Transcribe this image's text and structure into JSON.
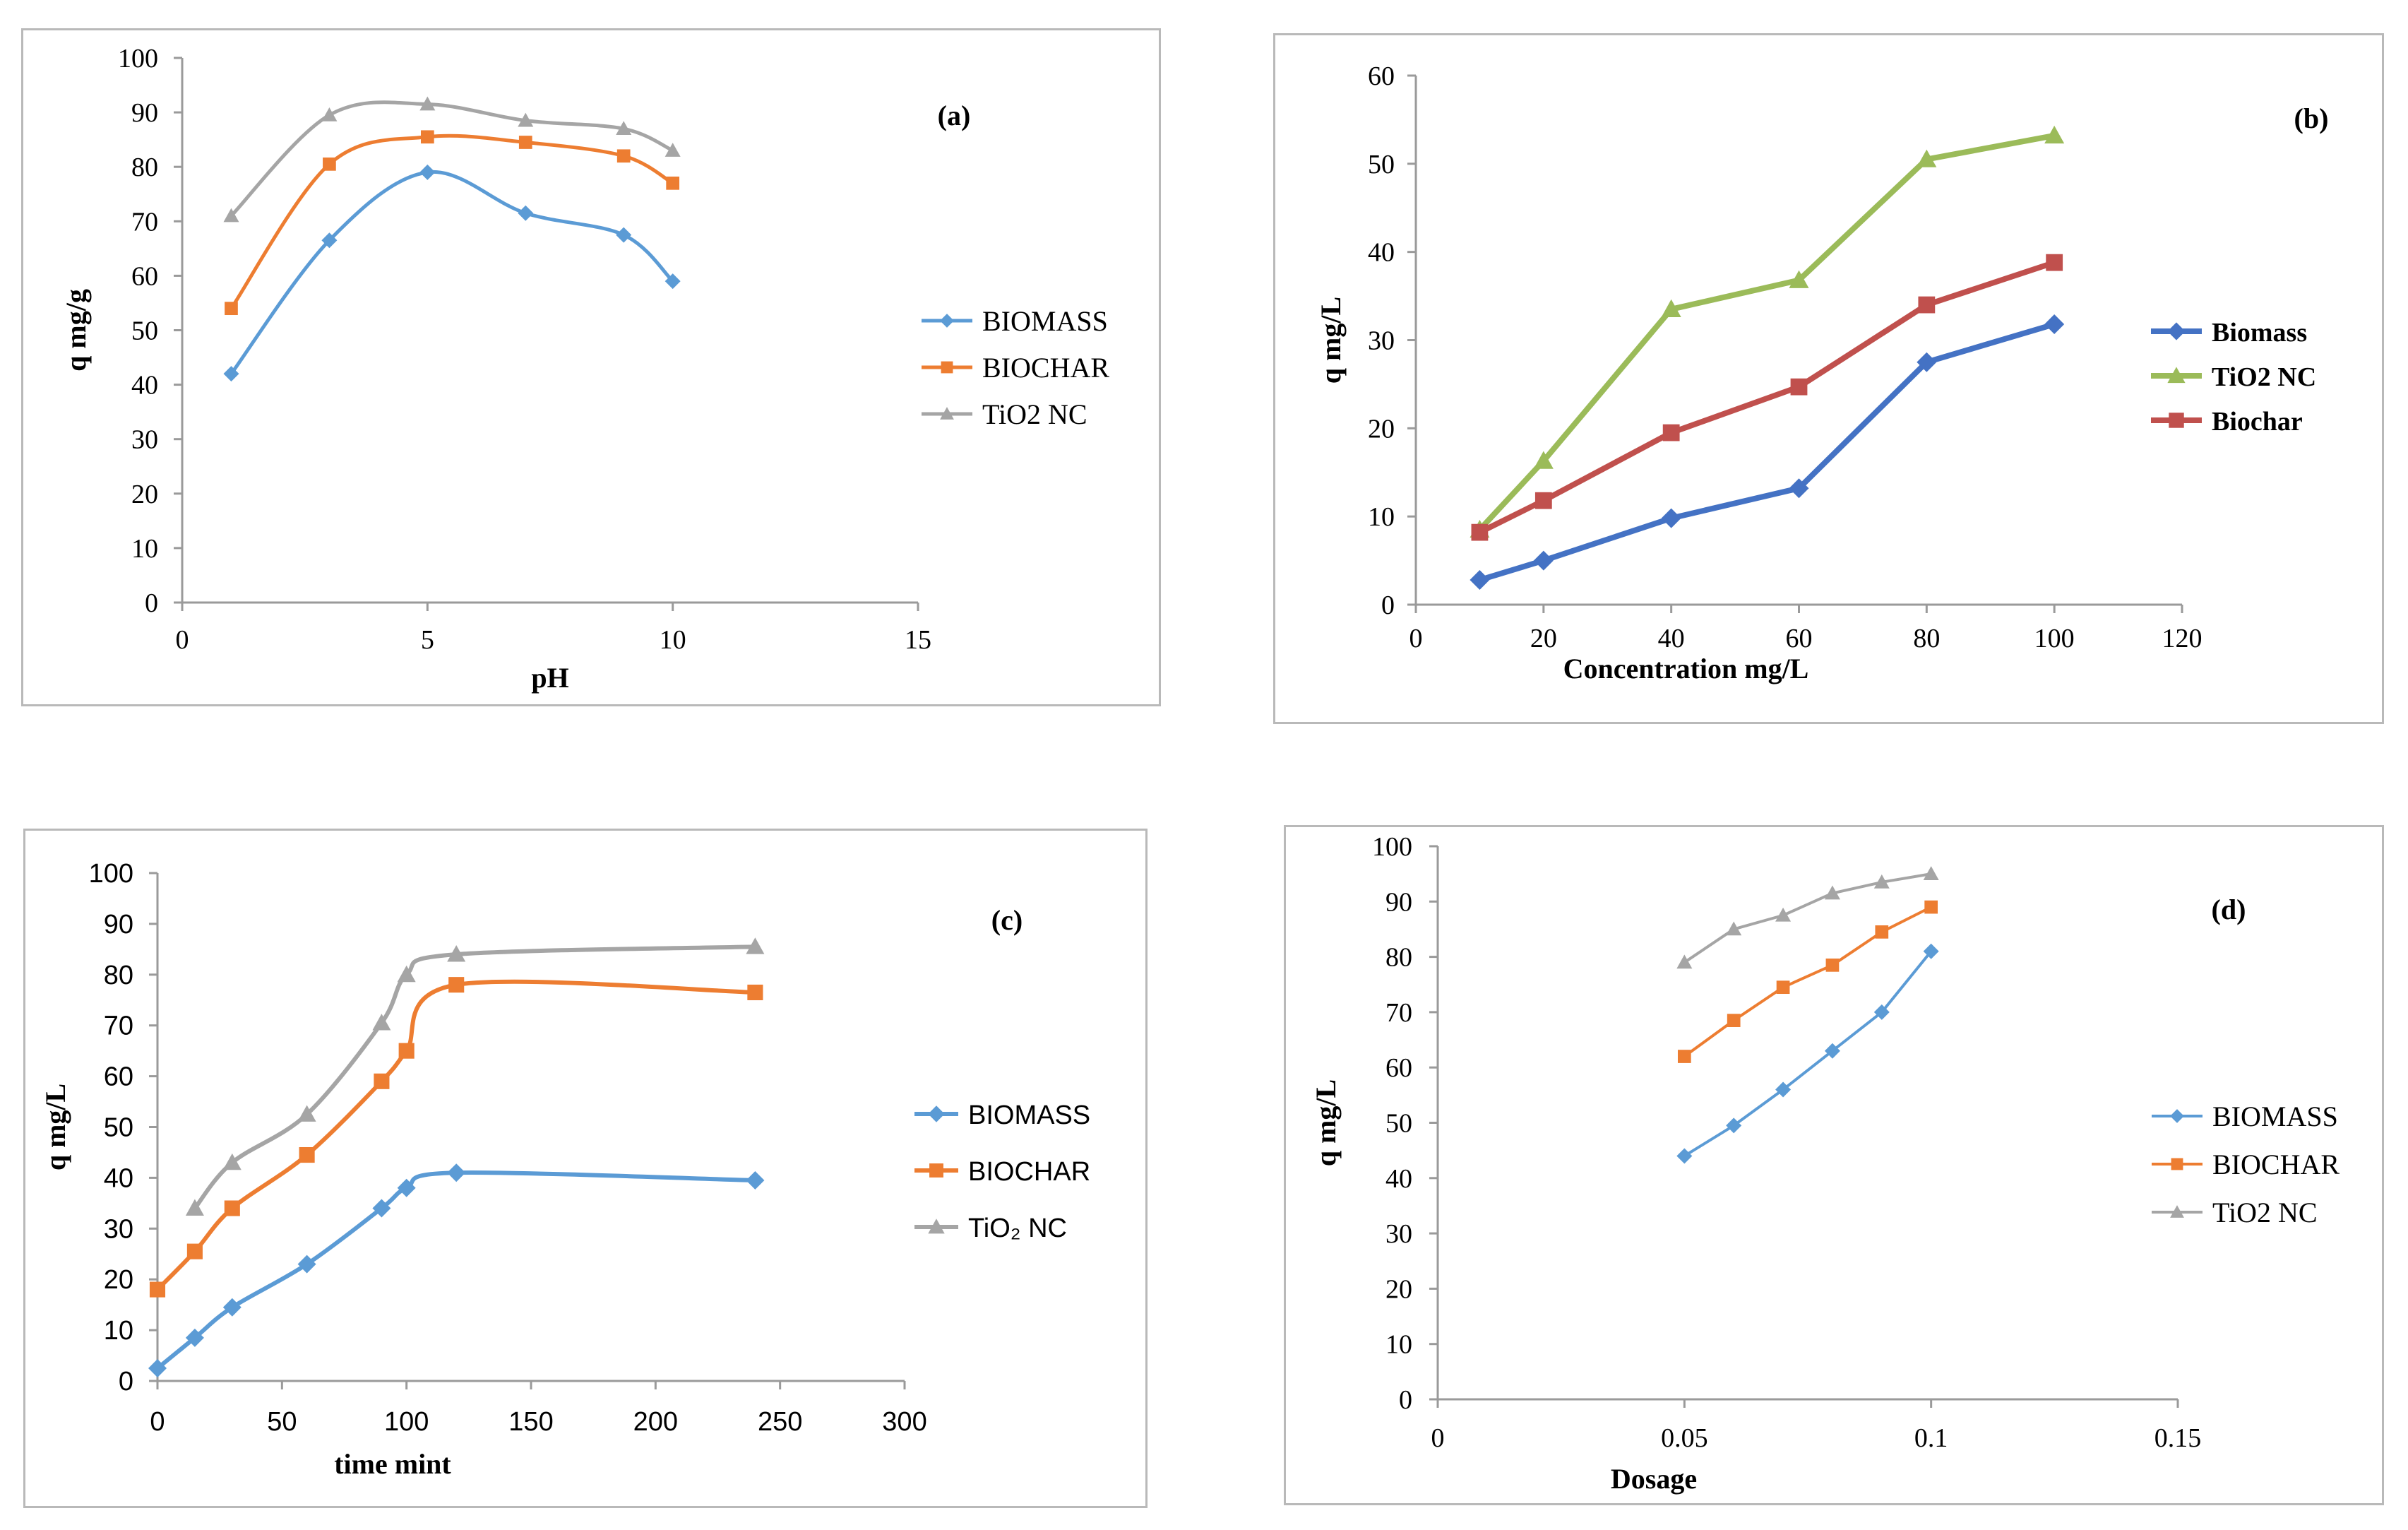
{
  "chart_data": [
    {
      "type": "line",
      "panel_tag": "(a)",
      "xlabel": "pH",
      "ylabel": "q mg/g",
      "xlim": [
        0,
        15
      ],
      "ylim": [
        0,
        100
      ],
      "xticks": [
        "0",
        "5",
        "10",
        "15"
      ],
      "yticks": [
        "0",
        "10",
        "20",
        "30",
        "40",
        "50",
        "60",
        "70",
        "80",
        "90",
        "100"
      ],
      "grid": false,
      "legend_position": "right",
      "series": [
        {
          "name": "BIOMASS",
          "color": "#5b9bd5",
          "marker": "diamond",
          "x": [
            1,
            3,
            5,
            7,
            9,
            10
          ],
          "values": [
            42,
            66.5,
            79,
            71.5,
            67.5,
            59
          ]
        },
        {
          "name": "BIOCHAR",
          "color": "#ed7d31",
          "marker": "square",
          "x": [
            1,
            3,
            5,
            7,
            9,
            10
          ],
          "values": [
            54,
            80.5,
            85.5,
            84.5,
            82,
            77
          ]
        },
        {
          "name": "TiO2 NC",
          "color": "#a5a5a5",
          "marker": "triangle",
          "x": [
            1,
            3,
            5,
            7,
            9,
            10
          ],
          "values": [
            71,
            89.5,
            91.5,
            88.5,
            87,
            83
          ]
        }
      ]
    },
    {
      "type": "line",
      "panel_tag": "(b)",
      "xlabel": "Concentration mg/L",
      "ylabel": "q mg/L",
      "xlim": [
        0,
        120
      ],
      "ylim": [
        0,
        60
      ],
      "xticks": [
        "0",
        "20",
        "40",
        "60",
        "80",
        "100",
        "120"
      ],
      "yticks": [
        "0",
        "10",
        "20",
        "30",
        "40",
        "50",
        "60"
      ],
      "grid": false,
      "legend_position": "right",
      "series": [
        {
          "name": "Biomass",
          "color": "#4472c4",
          "marker": "diamond",
          "x": [
            10,
            20,
            40,
            60,
            80,
            100
          ],
          "values": [
            2.8,
            5,
            9.8,
            13.2,
            27.5,
            31.8
          ]
        },
        {
          "name": "TiO2 NC",
          "color": "#9bbb59",
          "marker": "triangle",
          "x": [
            10,
            20,
            40,
            60,
            80,
            100
          ],
          "values": [
            8.5,
            16.3,
            33.5,
            36.8,
            50.5,
            53.2
          ]
        },
        {
          "name": "Biochar",
          "color": "#c0504d",
          "marker": "square",
          "x": [
            10,
            20,
            40,
            60,
            80,
            100
          ],
          "values": [
            8.2,
            11.8,
            19.5,
            24.7,
            34,
            38.8
          ]
        }
      ]
    },
    {
      "type": "line",
      "panel_tag": "(c)",
      "xlabel": "time mint",
      "ylabel": "q  mg/L",
      "xlim": [
        0,
        300
      ],
      "ylim": [
        0,
        100
      ],
      "xticks": [
        "0",
        "50",
        "100",
        "150",
        "200",
        "250",
        "300"
      ],
      "yticks": [
        "0",
        "10",
        "20",
        "30",
        "40",
        "50",
        "60",
        "70",
        "80",
        "90",
        "100"
      ],
      "grid": false,
      "legend_position": "right",
      "series": [
        {
          "name": "BIOMASS",
          "color": "#5b9bd5",
          "marker": "diamond",
          "x": [
            0,
            15,
            30,
            60,
            90,
            100,
            120,
            240
          ],
          "values": [
            2.5,
            8.5,
            14.5,
            23,
            34,
            38,
            41,
            39.5
          ]
        },
        {
          "name": "BIOCHAR",
          "color": "#ed7d31",
          "marker": "square",
          "x": [
            0,
            15,
            30,
            60,
            90,
            100,
            120,
            240
          ],
          "values": [
            18,
            25.5,
            34,
            44.5,
            59,
            65,
            78,
            76.5
          ]
        },
        {
          "name": "TiO₂ NC",
          "color": "#a5a5a5",
          "marker": "triangle",
          "x": [
            15,
            30,
            60,
            90,
            100,
            120,
            240
          ],
          "values": [
            34,
            43,
            52.5,
            70.5,
            80,
            84,
            85.5
          ]
        }
      ]
    },
    {
      "type": "line",
      "panel_tag": "(d)",
      "xlabel": "Dosage",
      "ylabel": "q mg/L",
      "xlim": [
        0,
        0.15
      ],
      "ylim": [
        0,
        100
      ],
      "xticks": [
        "0",
        "0.05",
        "0.1",
        "0.15"
      ],
      "yticks": [
        "0",
        "10",
        "20",
        "30",
        "40",
        "50",
        "60",
        "70",
        "80",
        "90",
        "100"
      ],
      "grid": false,
      "legend_position": "right",
      "series": [
        {
          "name": "BIOMASS",
          "color": "#5b9bd5",
          "marker": "diamond",
          "x": [
            0.05,
            0.06,
            0.07,
            0.08,
            0.09,
            0.1
          ],
          "values": [
            44,
            49.5,
            56,
            63,
            70,
            81
          ]
        },
        {
          "name": "BIOCHAR",
          "color": "#ed7d31",
          "marker": "square",
          "x": [
            0.05,
            0.06,
            0.07,
            0.08,
            0.09,
            0.1
          ],
          "values": [
            62,
            68.5,
            74.5,
            78.5,
            84.5,
            89
          ]
        },
        {
          "name": "TiO2 NC",
          "color": "#a5a5a5",
          "marker": "triangle",
          "x": [
            0.05,
            0.06,
            0.07,
            0.08,
            0.09,
            0.1
          ],
          "values": [
            79,
            85,
            87.5,
            91.5,
            93.5,
            95
          ]
        }
      ]
    }
  ]
}
